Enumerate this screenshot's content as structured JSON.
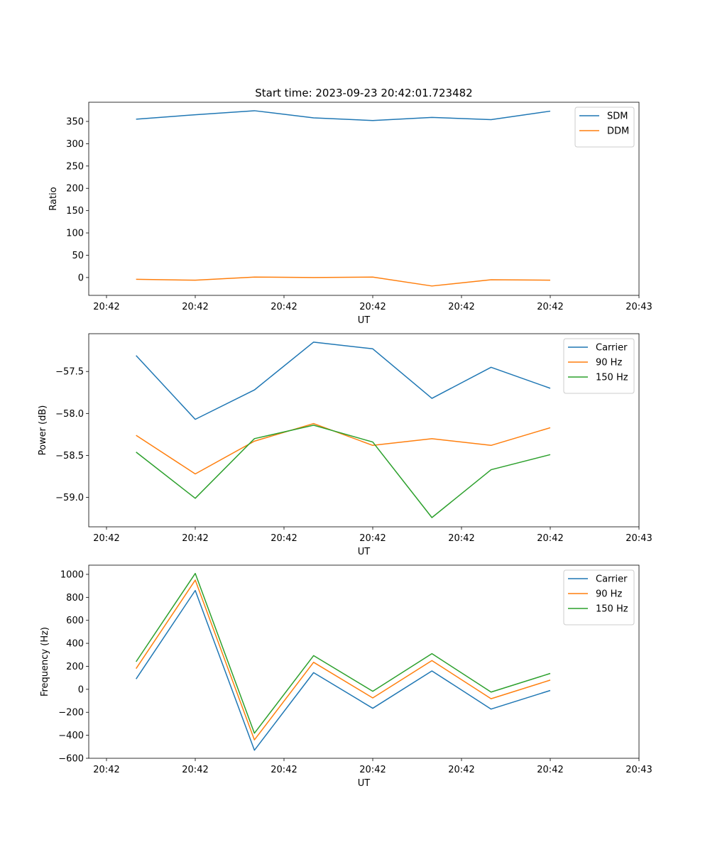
{
  "figure": {
    "title": "Start time: 2023-09-23 20:42:01.723482"
  },
  "chart_data": [
    {
      "type": "line",
      "title": "Start time: 2023-09-23 20:42:01.723482",
      "xlabel": "UT",
      "ylabel": "Ratio",
      "x": [
        1,
        2,
        3,
        4,
        5,
        6,
        7,
        8
      ],
      "xlim": [
        0.2,
        9.5
      ],
      "xticks": [
        0.5,
        2,
        3.5,
        5,
        6.5,
        8,
        9.5
      ],
      "xticklabels": [
        "20:42",
        "20:42",
        "20:42",
        "20:42",
        "20:42",
        "20:42",
        "20:43"
      ],
      "ylim": [
        -40,
        393
      ],
      "yticks": [
        0,
        50,
        100,
        150,
        200,
        250,
        300,
        350
      ],
      "yticklabels": [
        "0",
        "50",
        "100",
        "150",
        "200",
        "250",
        "300",
        "350"
      ],
      "legend_position": "top-right",
      "series": [
        {
          "name": "SDM",
          "color": "#1f77b4",
          "values": [
            355,
            365,
            374,
            358,
            352,
            359,
            354,
            373
          ]
        },
        {
          "name": "DDM",
          "color": "#ff7f0e",
          "values": [
            -4,
            -6,
            1,
            0,
            1,
            -19,
            -5,
            -6
          ]
        }
      ]
    },
    {
      "type": "line",
      "title": "",
      "xlabel": "UT",
      "ylabel": "Power (dB)",
      "x": [
        1,
        2,
        3,
        4,
        5,
        6,
        7,
        8
      ],
      "xlim": [
        0.2,
        9.5
      ],
      "xticks": [
        0.5,
        2,
        3.5,
        5,
        6.5,
        8,
        9.5
      ],
      "xticklabels": [
        "20:42",
        "20:42",
        "20:42",
        "20:42",
        "20:42",
        "20:42",
        "20:43"
      ],
      "ylim": [
        -59.35,
        -57.05
      ],
      "yticks": [
        -59.0,
        -58.5,
        -58.0,
        -57.5
      ],
      "yticklabels": [
        "−59.0",
        "−58.5",
        "−58.0",
        "−57.5"
      ],
      "legend_position": "top-right",
      "series": [
        {
          "name": "Carrier",
          "color": "#1f77b4",
          "values": [
            -57.31,
            -58.07,
            -57.72,
            -57.15,
            -57.23,
            -57.82,
            -57.45,
            -57.7
          ]
        },
        {
          "name": "90 Hz",
          "color": "#ff7f0e",
          "values": [
            -58.26,
            -58.72,
            -58.33,
            -58.12,
            -58.38,
            -58.3,
            -58.38,
            -58.17
          ]
        },
        {
          "name": "150 Hz",
          "color": "#2ca02c",
          "values": [
            -58.46,
            -59.01,
            -58.3,
            -58.14,
            -58.34,
            -59.24,
            -58.67,
            -58.49
          ]
        }
      ]
    },
    {
      "type": "line",
      "title": "",
      "xlabel": "UT",
      "ylabel": "Frequency (Hz)",
      "x": [
        1,
        2,
        3,
        4,
        5,
        6,
        7,
        8
      ],
      "xlim": [
        0.2,
        9.5
      ],
      "xticks": [
        0.5,
        2,
        3.5,
        5,
        6.5,
        8,
        9.5
      ],
      "xticklabels": [
        "20:42",
        "20:42",
        "20:42",
        "20:42",
        "20:42",
        "20:42",
        "20:43"
      ],
      "ylim": [
        -600,
        1080
      ],
      "yticks": [
        -600,
        -400,
        -200,
        0,
        200,
        400,
        600,
        800,
        1000
      ],
      "yticklabels": [
        "−600",
        "−400",
        "−200",
        "0",
        "200",
        "400",
        "600",
        "800",
        "1000"
      ],
      "legend_position": "top-right",
      "series": [
        {
          "name": "Carrier",
          "color": "#1f77b4",
          "values": [
            90,
            860,
            -530,
            145,
            -165,
            160,
            -172,
            -10
          ]
        },
        {
          "name": "90 Hz",
          "color": "#ff7f0e",
          "values": [
            180,
            950,
            -440,
            235,
            -75,
            250,
            -82,
            80
          ]
        },
        {
          "name": "150 Hz",
          "color": "#2ca02c",
          "values": [
            240,
            1008,
            -382,
            293,
            -17,
            310,
            -24,
            138
          ]
        }
      ]
    }
  ]
}
